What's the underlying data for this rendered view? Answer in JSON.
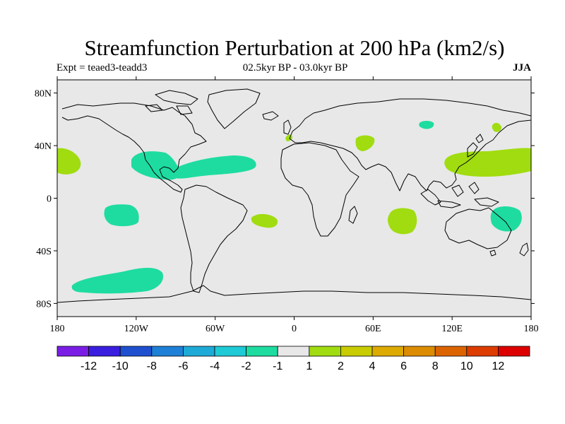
{
  "header": {
    "title": "Streamfunction Perturbation at 200 hPa (km2/s)",
    "experiment": "Expt = teaed3-teadd3",
    "period": "02.5kyr BP - 03.0kyr BP",
    "season": "JJA"
  },
  "map": {
    "projection": "cylindrical-equidistant",
    "lon_range": [
      -180,
      180
    ],
    "lat_range": [
      -90,
      90
    ],
    "lon_ticks": [
      {
        "value": -180,
        "label": "180"
      },
      {
        "value": -120,
        "label": "120W"
      },
      {
        "value": -60,
        "label": "60W"
      },
      {
        "value": 0,
        "label": "0"
      },
      {
        "value": 60,
        "label": "60E"
      },
      {
        "value": 120,
        "label": "120E"
      },
      {
        "value": 180,
        "label": "180"
      }
    ],
    "lat_ticks": [
      {
        "value": 80,
        "label": "80N"
      },
      {
        "value": 40,
        "label": "40N"
      },
      {
        "value": 0,
        "label": "0"
      },
      {
        "value": -40,
        "label": "40S"
      },
      {
        "value": -80,
        "label": "80S"
      }
    ],
    "background_color": "#e8e8e8",
    "coastline_color": "#000000"
  },
  "colorbar": {
    "colors": [
      "#7a1ee6",
      "#3a1ee0",
      "#1e50d0",
      "#1e80d6",
      "#1eaad6",
      "#1ecad6",
      "#1edca0",
      "#e8e8e8",
      "#a0dc10",
      "#c8cc00",
      "#dcaa00",
      "#dc8c00",
      "#dc6400",
      "#dc3c00",
      "#dc0000"
    ],
    "labels": [
      "-12",
      "-10",
      "-8",
      "-6",
      "-4",
      "-2",
      "-1",
      "1",
      "2",
      "4",
      "6",
      "8",
      "10",
      "12"
    ]
  },
  "chart_data": {
    "type": "map",
    "variable": "Streamfunction Perturbation at 200 hPa",
    "units": "km2/s",
    "anomaly_regions": [
      {
        "lon": -178,
        "lat": 28,
        "category": "1 to 2"
      },
      {
        "lon": -107,
        "lat": 27,
        "category": "-2 to -1"
      },
      {
        "lon": -50,
        "lat": 25,
        "category": "-2 to -1"
      },
      {
        "lon": -128,
        "lat": -13,
        "category": "-2 to -1"
      },
      {
        "lon": -22,
        "lat": -16,
        "category": "1 to 2"
      },
      {
        "lon": -120,
        "lat": -62,
        "category": "-2 to -1"
      },
      {
        "lon": -3,
        "lat": 45,
        "category": "1 to 2"
      },
      {
        "lon": 53,
        "lat": 42,
        "category": "1 to 2"
      },
      {
        "lon": 100,
        "lat": 56,
        "category": "-2 to -1"
      },
      {
        "lon": 155,
        "lat": 55,
        "category": "1 to 2"
      },
      {
        "lon": 150,
        "lat": 25,
        "category": "1 to 2"
      },
      {
        "lon": 85,
        "lat": -17,
        "category": "1 to 2"
      },
      {
        "lon": 157,
        "lat": -15,
        "category": "-2 to -1"
      }
    ]
  }
}
